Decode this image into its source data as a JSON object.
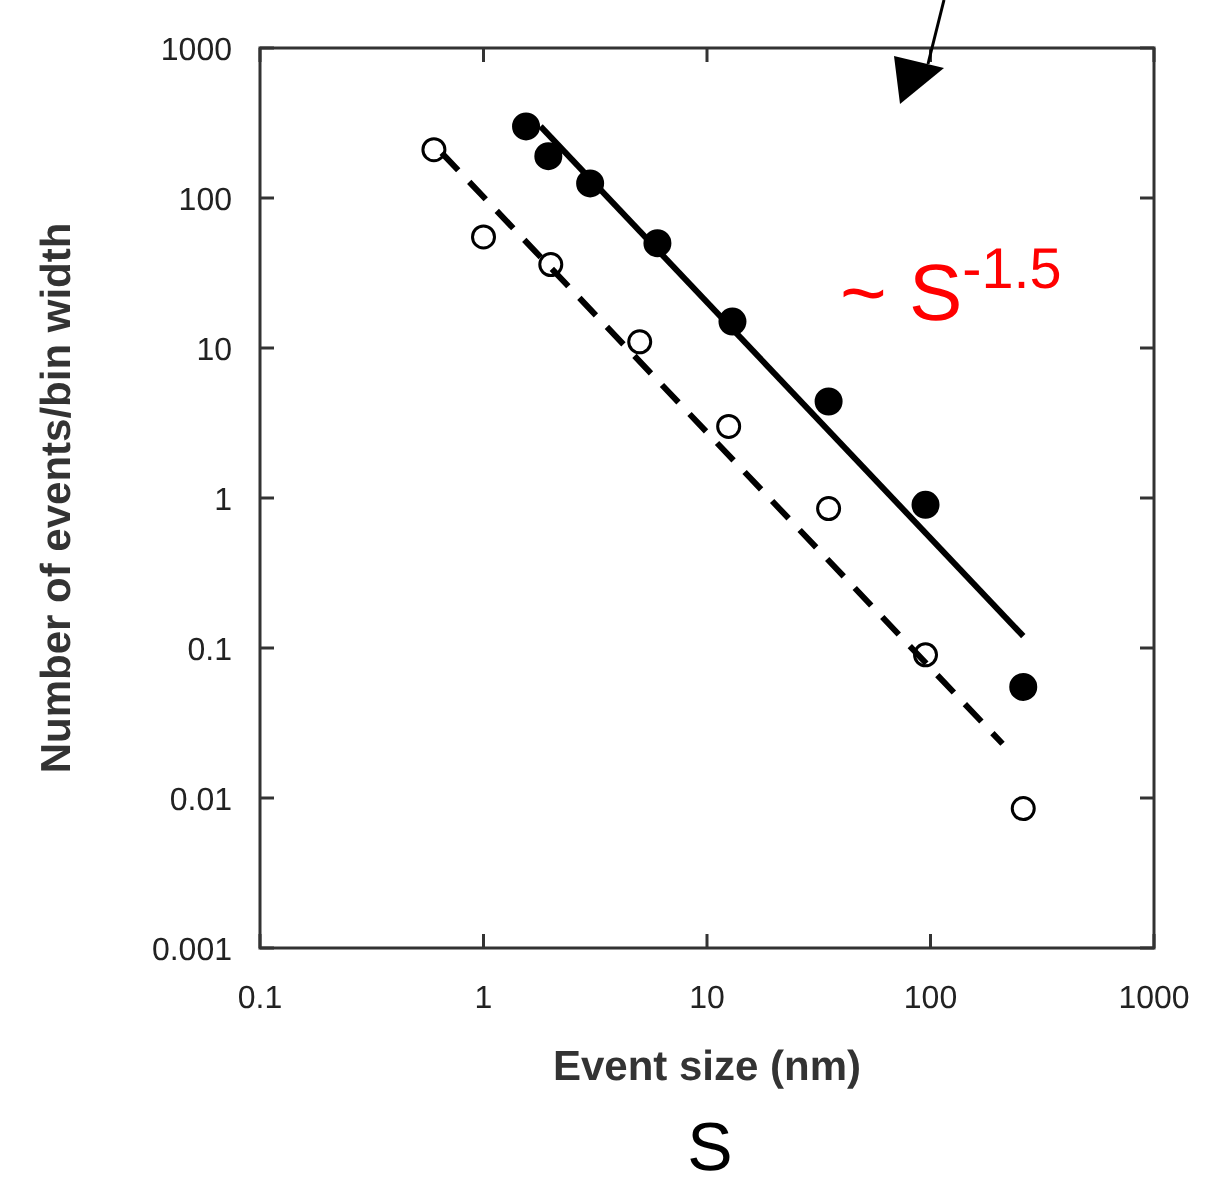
{
  "chart_data": {
    "type": "scatter",
    "xlabel": "Event size (nm)",
    "ylabel": "Number of events/bin width",
    "log": "xy",
    "xlim": [
      0.1,
      1000
    ],
    "xticks": [
      0.1,
      1,
      10,
      100,
      1000
    ],
    "ylim": [
      0.001,
      1000
    ],
    "yticks": [
      0.001,
      0.01,
      0.1,
      1,
      10,
      100,
      1000
    ],
    "series": [
      {
        "color": "#000000",
        "marker": "circle",
        "x": [
          1.55,
          1.95,
          3,
          6,
          13,
          35,
          95,
          260
        ],
        "values": [
          300,
          190,
          125,
          50,
          15,
          4.4,
          0.9,
          0.055
        ]
      },
      {
        "color": "#000000",
        "marker": "open circle",
        "x": [
          0.6,
          1,
          2,
          5,
          12.5,
          35,
          95,
          260
        ],
        "values": [
          210,
          55,
          36,
          11,
          3,
          0.85,
          0.09,
          0.0085
        ]
      },
      {
        "type": "line",
        "color": "#000000",
        "marker": "none",
        "line_style": "solid",
        "x": [
          1.8,
          260
        ],
        "values": [
          300,
          0.12
        ]
      },
      {
        "type": "line",
        "color": "#000000",
        "marker": "none",
        "line_style": "dashed",
        "x": [
          0.65,
          210
        ],
        "values": [
          200,
          0.023
        ]
      }
    ],
    "annotations": [
      "~ S$^{-1.5}$",
      "S"
    ]
  }
}
